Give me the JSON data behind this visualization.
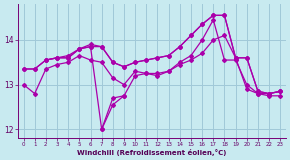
{
  "xlabel": "Windchill (Refroidissement éolien,°C)",
  "background_color": "#c8eaf0",
  "grid_color": "#a0c8d8",
  "line_color": "#aa00aa",
  "ylim": [
    11.8,
    14.8
  ],
  "xlim": [
    -0.5,
    23.5
  ],
  "yticks": [
    12,
    13,
    14
  ],
  "xticks": [
    0,
    1,
    2,
    3,
    4,
    5,
    6,
    7,
    8,
    9,
    10,
    11,
    12,
    13,
    14,
    15,
    16,
    17,
    18,
    19,
    20,
    21,
    22,
    23
  ],
  "series": [
    {
      "x": [
        0,
        1,
        2,
        3,
        4,
        5,
        6,
        7,
        8,
        9,
        10,
        11,
        12,
        13,
        14,
        15,
        16,
        17,
        18,
        19,
        20,
        21,
        22,
        23
      ],
      "y": [
        13.35,
        13.35,
        13.55,
        13.6,
        13.6,
        13.8,
        13.85,
        13.85,
        13.5,
        13.4,
        13.5,
        13.55,
        13.6,
        13.65,
        13.85,
        14.1,
        14.35,
        14.55,
        14.55,
        13.6,
        13.6,
        12.85,
        12.8,
        12.85
      ]
    },
    {
      "x": [
        2,
        3,
        4,
        5,
        6,
        7,
        8,
        9,
        10,
        11,
        12,
        13,
        14,
        15,
        16,
        17,
        18,
        19,
        20,
        21,
        22,
        23
      ],
      "y": [
        13.55,
        13.6,
        13.65,
        13.8,
        13.9,
        13.85,
        13.5,
        13.4,
        13.5,
        13.55,
        13.6,
        13.65,
        13.85,
        14.1,
        14.35,
        14.55,
        14.55,
        13.6,
        13.6,
        12.85,
        12.8,
        12.85
      ]
    },
    {
      "x": [
        0,
        1,
        2,
        3,
        4,
        5,
        6,
        7,
        8,
        9,
        10,
        11,
        12,
        13,
        14,
        15,
        16,
        17,
        18,
        19,
        20,
        21,
        22,
        23
      ],
      "y": [
        13.35,
        13.35,
        13.55,
        13.6,
        13.6,
        13.8,
        13.85,
        12.0,
        12.7,
        12.75,
        13.2,
        13.25,
        13.25,
        13.3,
        13.45,
        13.55,
        13.7,
        14.0,
        14.1,
        13.6,
        12.9,
        12.8,
        12.8,
        12.85
      ]
    },
    {
      "x": [
        0,
        1,
        2,
        3,
        4,
        5,
        6,
        7,
        8,
        9,
        10,
        11,
        12,
        13,
        14,
        15,
        16,
        17,
        18,
        19,
        20,
        21,
        22,
        23
      ],
      "y": [
        13.0,
        12.8,
        13.35,
        13.45,
        13.5,
        13.65,
        13.55,
        13.5,
        13.15,
        13.0,
        13.3,
        13.25,
        13.2,
        13.3,
        13.5,
        13.65,
        14.0,
        14.45,
        13.55,
        13.55,
        13.0,
        12.8,
        12.75,
        12.75
      ]
    },
    {
      "x": [
        7,
        8,
        9
      ],
      "y": [
        12.0,
        12.55,
        12.75
      ]
    }
  ],
  "marker": "D",
  "markersize": 2.0,
  "linewidth": 0.9
}
